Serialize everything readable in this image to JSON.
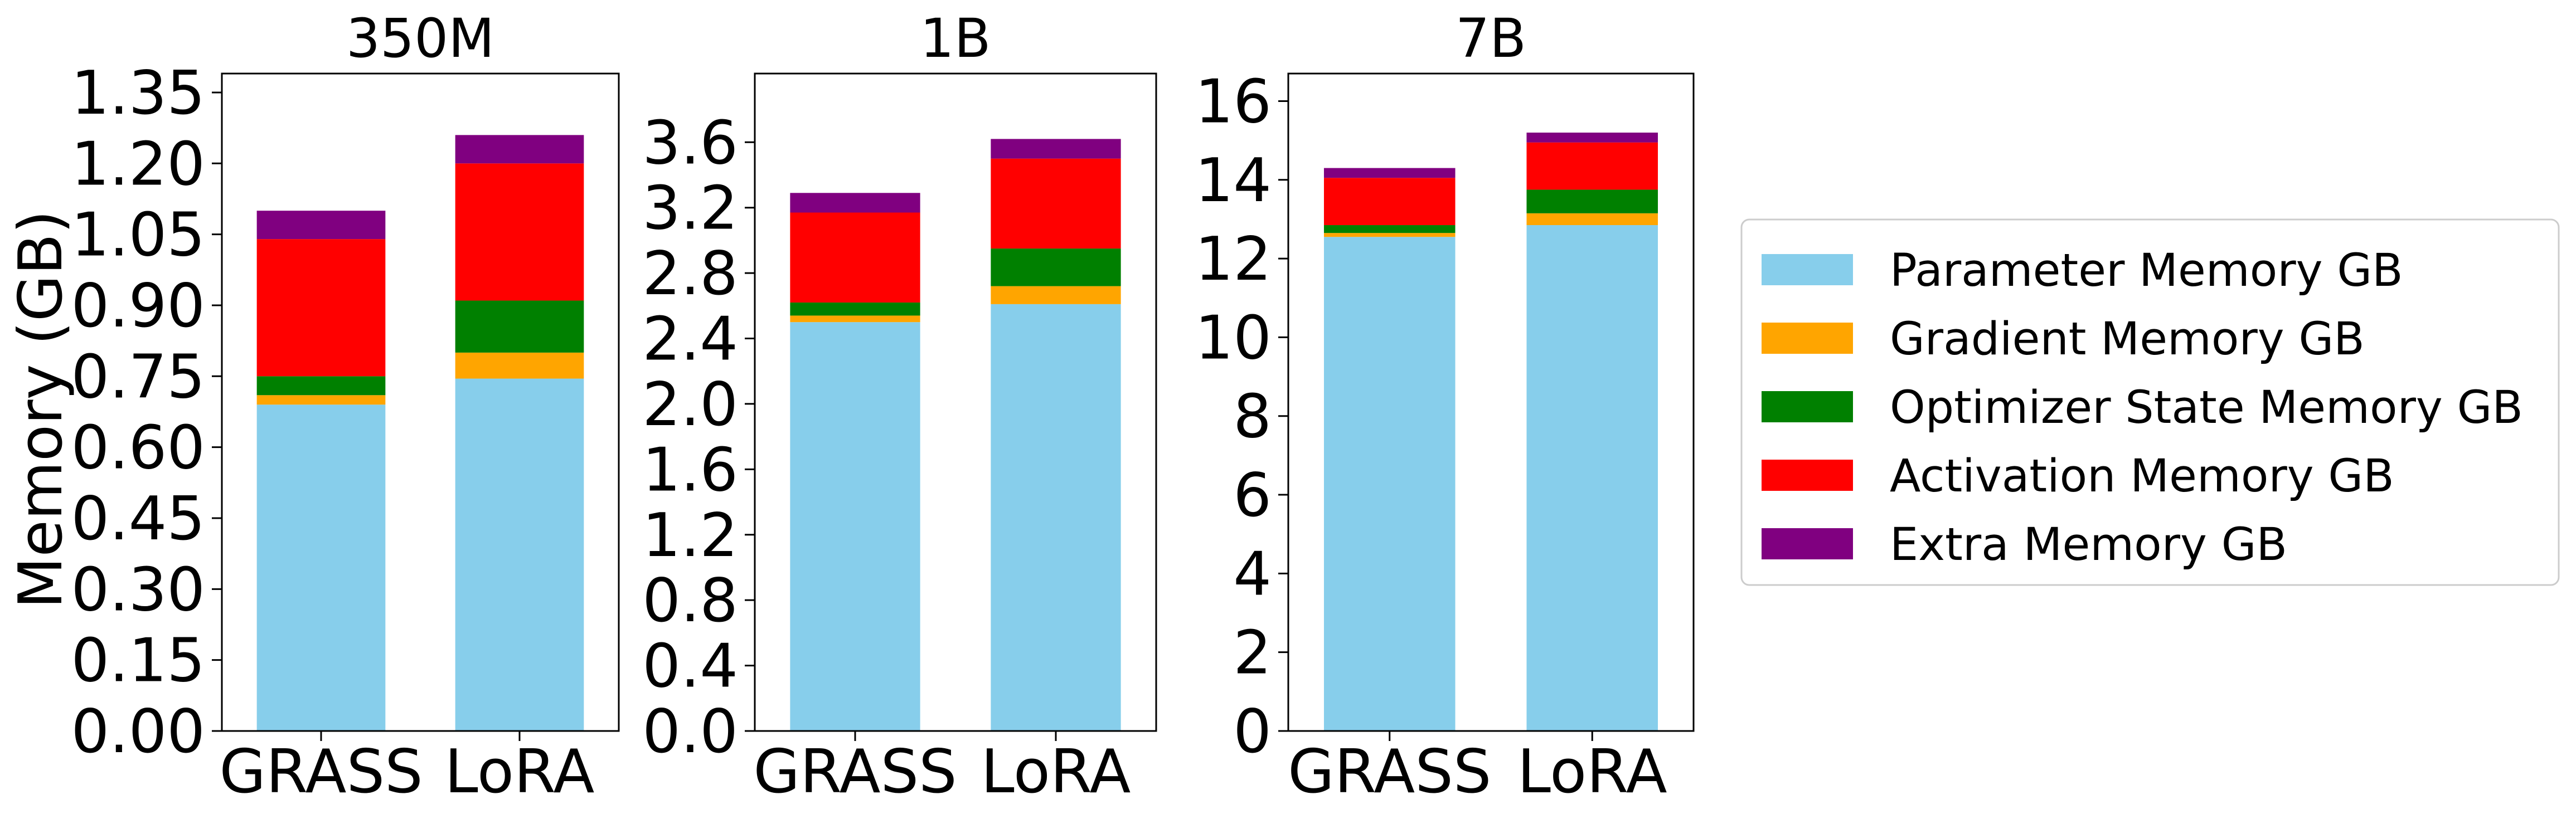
{
  "figure": {
    "ylabel": "Memory (GB)",
    "legend_position": "right"
  },
  "legend": [
    {
      "label": "Parameter Memory GB",
      "color": "#87CEEB"
    },
    {
      "label": "Gradient Memory GB",
      "color": "#FFA500"
    },
    {
      "label": "Optimizer State Memory GB",
      "color": "#008000"
    },
    {
      "label": "Activation Memory GB",
      "color": "#FF0000"
    },
    {
      "label": "Extra Memory GB",
      "color": "#800080"
    }
  ],
  "chart_data": [
    {
      "type": "bar",
      "stacked": true,
      "title": "350M",
      "categories": [
        "GRASS",
        "LoRA"
      ],
      "ylim": [
        0,
        1.39
      ],
      "yticks": [
        "0.00",
        "0.15",
        "0.30",
        "0.45",
        "0.60",
        "0.75",
        "0.90",
        "1.05",
        "1.20",
        "1.35"
      ],
      "series": [
        {
          "name": "Parameter Memory GB",
          "values": [
            0.69,
            0.745
          ]
        },
        {
          "name": "Gradient Memory GB",
          "values": [
            0.02,
            0.055
          ]
        },
        {
          "name": "Optimizer State Memory GB",
          "values": [
            0.04,
            0.11
          ]
        },
        {
          "name": "Activation Memory GB",
          "values": [
            0.29,
            0.29
          ]
        },
        {
          "name": "Extra Memory GB",
          "values": [
            0.06,
            0.06
          ]
        }
      ]
    },
    {
      "type": "bar",
      "stacked": true,
      "title": "1B",
      "categories": [
        "GRASS",
        "LoRA"
      ],
      "ylim": [
        0,
        4.02
      ],
      "yticks": [
        "0.0",
        "0.4",
        "0.8",
        "1.2",
        "1.6",
        "2.0",
        "2.4",
        "2.8",
        "3.2",
        "3.6"
      ],
      "series": [
        {
          "name": "Parameter Memory GB",
          "values": [
            2.5,
            2.61
          ]
        },
        {
          "name": "Gradient Memory GB",
          "values": [
            0.04,
            0.11
          ]
        },
        {
          "name": "Optimizer State Memory GB",
          "values": [
            0.08,
            0.23
          ]
        },
        {
          "name": "Activation Memory GB",
          "values": [
            0.55,
            0.55
          ]
        },
        {
          "name": "Extra Memory GB",
          "values": [
            0.12,
            0.12
          ]
        }
      ]
    },
    {
      "type": "bar",
      "stacked": true,
      "title": "7B",
      "categories": [
        "GRASS",
        "LoRA"
      ],
      "ylim": [
        0,
        16.7
      ],
      "yticks": [
        "0",
        "2",
        "4",
        "6",
        "8",
        "10",
        "12",
        "14",
        "16"
      ],
      "series": [
        {
          "name": "Parameter Memory GB",
          "values": [
            12.55,
            12.85
          ]
        },
        {
          "name": "Gradient Memory GB",
          "values": [
            0.1,
            0.3
          ]
        },
        {
          "name": "Optimizer State Memory GB",
          "values": [
            0.2,
            0.6
          ]
        },
        {
          "name": "Activation Memory GB",
          "values": [
            1.2,
            1.2
          ]
        },
        {
          "name": "Extra Memory GB",
          "values": [
            0.25,
            0.25
          ]
        }
      ]
    }
  ]
}
